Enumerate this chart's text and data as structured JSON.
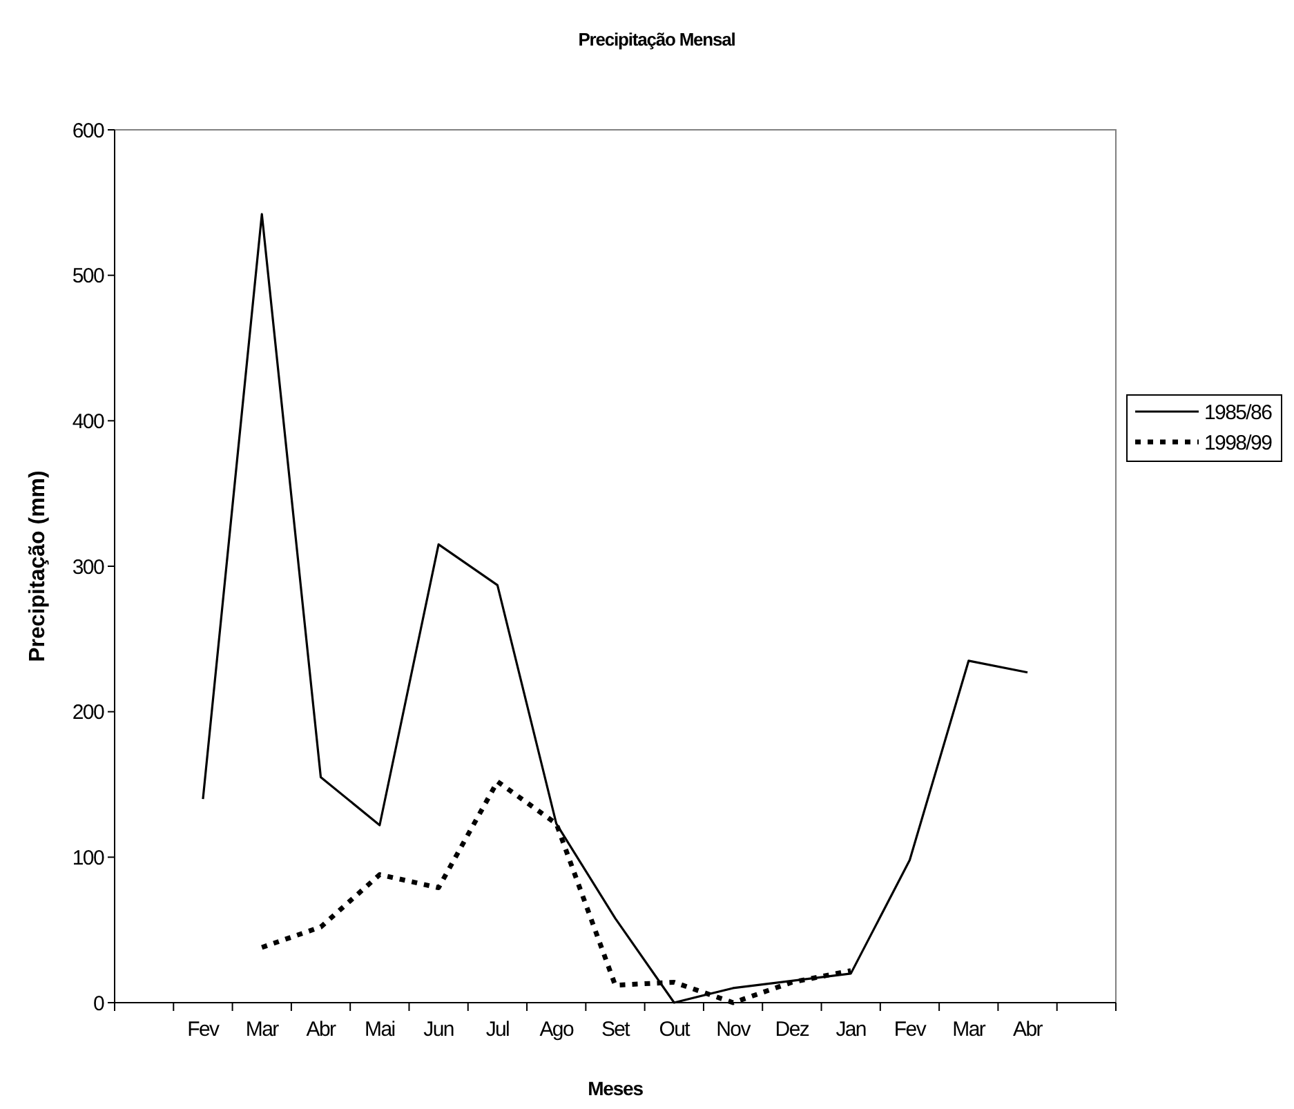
{
  "chart_data": {
    "type": "line",
    "title": "Precipitação Mensal",
    "xlabel": "Meses",
    "ylabel": "Precipitação (mm)",
    "categories": [
      null,
      "Fev",
      "Mar",
      "Abr",
      "Mai",
      "Jun",
      "Jul",
      "Ago",
      "Set",
      "Out",
      "Nov",
      "Dez",
      "Jan",
      "Fev",
      "Mar",
      "Abr",
      null
    ],
    "series": [
      {
        "name": "1985/86",
        "color": "#000000",
        "line_style": "solid",
        "values": [
          null,
          140,
          542,
          155,
          122,
          315,
          287,
          123,
          58,
          0,
          10,
          15,
          20,
          98,
          235,
          227,
          null
        ]
      },
      {
        "name": "1998/99",
        "color": "#000000",
        "line_style": "dotted",
        "values": [
          null,
          null,
          38,
          52,
          88,
          79,
          152,
          123,
          12,
          14,
          0,
          14,
          22,
          null,
          null,
          null,
          null
        ]
      }
    ],
    "ylim": [
      0,
      600
    ],
    "yticks": [
      0,
      100,
      200,
      300,
      400,
      500,
      600
    ],
    "grid": false,
    "legend": "right"
  }
}
